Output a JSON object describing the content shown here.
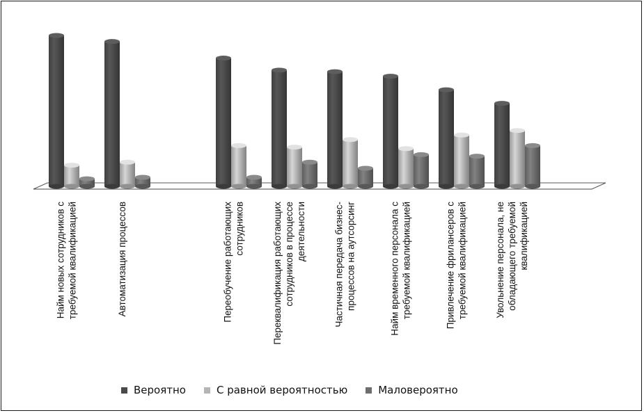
{
  "chart_data": {
    "type": "bar",
    "categories": [
      [
        "Найм новых сотрудников с",
        "требуемой  квалификацией"
      ],
      [
        "Автоматизация процессов"
      ],
      [],
      [
        "Переобучение работающих",
        "сотрудников"
      ],
      [
        "Переквалификация работающих",
        "сотрудников в процессе",
        "деятельности"
      ],
      [
        "Частичная передача бизнес-",
        "процессов на аутсорсинг"
      ],
      [
        "Найм временного персонала с",
        "требуемой квалификацией"
      ],
      [
        "Привлечение фрилансеров с",
        "требуемой квалификацией"
      ],
      [
        "Увольнение персонала, не",
        "обладающего требуемой",
        "квалификацией"
      ]
    ],
    "series": [
      {
        "name": "Вероятно",
        "color": "#4a4a4a",
        "values": [
          100,
          96,
          null,
          85,
          77,
          76,
          73,
          64,
          55
        ]
      },
      {
        "name": "С равной вероятностью",
        "color": "#b5b5b5",
        "values": [
          14,
          16,
          null,
          27,
          26,
          31,
          25,
          34,
          37
        ]
      },
      {
        "name": "Маловероятно",
        "color": "#6e6e6e",
        "values": [
          5,
          6,
          null,
          6,
          16,
          12,
          21,
          20,
          27
        ]
      }
    ],
    "ylim": [
      0,
      100
    ],
    "grid": false,
    "legend_position": "bottom",
    "title": "",
    "xlabel": "",
    "ylabel": ""
  }
}
